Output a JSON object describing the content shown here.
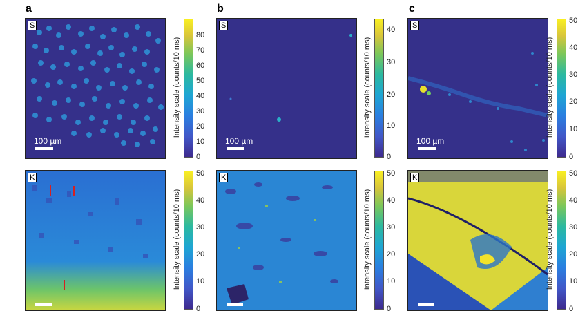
{
  "panels": [
    {
      "letter": "a",
      "top": {
        "tag": "S",
        "scale_label": "100 µm",
        "ticks": [
          "0",
          "10",
          "20",
          "30",
          "40",
          "50",
          "60",
          "70",
          "80"
        ],
        "cbar_label": "Intensity scale (counts/10 ms)"
      },
      "bottom": {
        "tag": "K",
        "scale_label": "",
        "ticks": [
          "0",
          "10",
          "20",
          "30",
          "40",
          "50"
        ],
        "cbar_label": "Intensity scale (counts/10 ms)"
      }
    },
    {
      "letter": "b",
      "top": {
        "tag": "S",
        "scale_label": "100 µm",
        "ticks": [
          "0",
          "10",
          "20",
          "30",
          "40"
        ],
        "cbar_label": "Intensity scale (counts/10 ms)"
      },
      "bottom": {
        "tag": "K",
        "scale_label": "",
        "ticks": [
          "0",
          "10",
          "20",
          "30",
          "40",
          "50"
        ],
        "cbar_label": "Intensity scale (counts/10 ms)"
      }
    },
    {
      "letter": "c",
      "top": {
        "tag": "S",
        "scale_label": "100 µm",
        "ticks": [
          "0",
          "10",
          "20",
          "30",
          "40",
          "50"
        ],
        "cbar_label": "Intensity scale (counts/10 ms)"
      },
      "bottom": {
        "tag": "K",
        "scale_label": "",
        "ticks": [
          "0",
          "10",
          "20",
          "30",
          "40",
          "50"
        ],
        "cbar_label": "Intensity scale (counts/10 ms)"
      }
    }
  ],
  "colors": {
    "low": "#3a2f8f",
    "mid": "#2a8ad8",
    "high": "#f3e52a"
  }
}
